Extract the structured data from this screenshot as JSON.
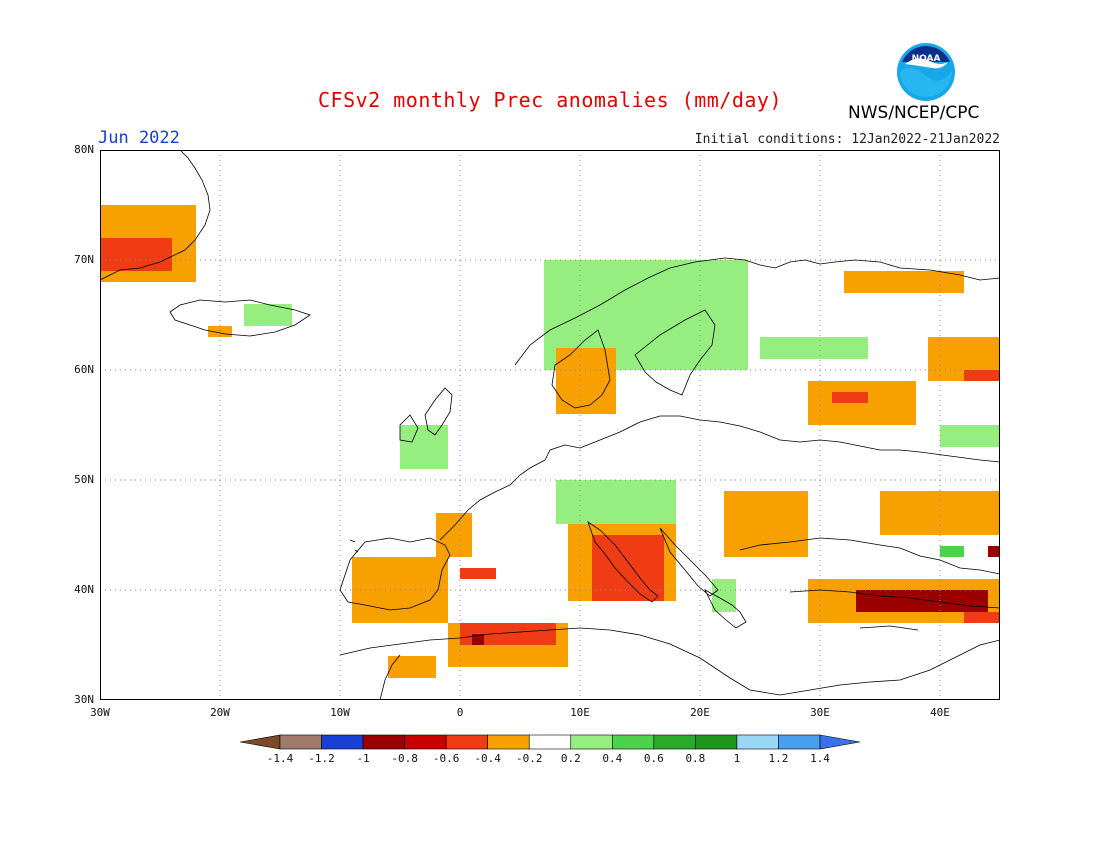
{
  "title": "CFSv2 monthly Prec anomalies (mm/day)",
  "valid_label": "Jun 2022",
  "initial_conditions": "Initial conditions: 12Jan2022-21Jan2022",
  "organization": "NWS/NCEP/CPC",
  "logo_text": "NOAA",
  "map": {
    "lon_range": [
      -30,
      45
    ],
    "lat_range": [
      30,
      80
    ],
    "lat_labels": [
      "80N",
      "70N",
      "60N",
      "50N",
      "40N",
      "30N"
    ],
    "lon_labels": [
      "30W",
      "20W",
      "10W",
      "0",
      "10E",
      "20E",
      "30E",
      "40E"
    ],
    "grid": "dotted"
  },
  "colorbar": {
    "labels": [
      "-1.4",
      "-1.2",
      "-1",
      "-0.8",
      "-0.6",
      "-0.4",
      "-0.2",
      "0.2",
      "0.4",
      "0.6",
      "0.8",
      "1",
      "1.2",
      "1.4"
    ],
    "colors": [
      "#7a4a2a",
      "#a07a6a",
      "#1a3fd6",
      "#9a0000",
      "#c80000",
      "#f03c14",
      "#f7a000",
      "#ffffff",
      "#96ee80",
      "#4cd24c",
      "#2aaa2a",
      "#1e961e",
      "#9ad6f5",
      "#4a9ef0",
      "#3a70e8"
    ]
  },
  "anomaly_regions": [
    {
      "category": "-0.4",
      "color": "#f7a000",
      "region": "Greenland east coast",
      "lon": [
        -30,
        -22
      ],
      "lat": [
        68,
        75
      ]
    },
    {
      "category": "-0.6",
      "color": "#f03c14",
      "region": "Greenland east coast",
      "lon": [
        -30,
        -24
      ],
      "lat": [
        69,
        72
      ]
    },
    {
      "category": "0.4",
      "color": "#96ee80",
      "region": "Iceland",
      "lon": [
        -18,
        -14
      ],
      "lat": [
        64,
        66
      ]
    },
    {
      "category": "-0.4",
      "color": "#f7a000",
      "region": "Iceland south",
      "lon": [
        -21,
        -19
      ],
      "lat": [
        63,
        64
      ]
    },
    {
      "category": "0.4",
      "color": "#96ee80",
      "region": "Scandinavian mountains",
      "lon": [
        7,
        24
      ],
      "lat": [
        60,
        70
      ]
    },
    {
      "category": "-0.4",
      "color": "#f7a000",
      "region": "Northwest Russia",
      "lon": [
        32,
        42
      ],
      "lat": [
        67,
        69
      ]
    },
    {
      "category": "0.4",
      "color": "#96ee80",
      "region": "Karelia",
      "lon": [
        25,
        34
      ],
      "lat": [
        61,
        63
      ]
    },
    {
      "category": "-0.4",
      "color": "#f7a000",
      "region": "Western Russia",
      "lon": [
        29,
        38
      ],
      "lat": [
        55,
        59
      ]
    },
    {
      "category": "-0.6",
      "color": "#f03c14",
      "region": "Western Russia",
      "lon": [
        31,
        34
      ],
      "lat": [
        57,
        58
      ]
    },
    {
      "category": "-0.4",
      "color": "#f7a000",
      "region": "Ural region",
      "lon": [
        39,
        45
      ],
      "lat": [
        59,
        63
      ]
    },
    {
      "category": "-0.6",
      "color": "#f03c14",
      "region": "Ural region",
      "lon": [
        42,
        45
      ],
      "lat": [
        59,
        60
      ]
    },
    {
      "category": "0.4",
      "color": "#96ee80",
      "region": "Middle Volga",
      "lon": [
        40,
        45
      ],
      "lat": [
        53,
        55
      ]
    },
    {
      "category": "-0.4",
      "color": "#f7a000",
      "region": "Southern Russia",
      "lon": [
        35,
        45
      ],
      "lat": [
        45,
        49
      ]
    },
    {
      "category": "0.6",
      "color": "#4cd24c",
      "region": "Caucasus",
      "lon": [
        40,
        42
      ],
      "lat": [
        43,
        44
      ]
    },
    {
      "category": "-0.8",
      "color": "#9a0000",
      "region": "Caucasus",
      "lon": [
        44,
        45
      ],
      "lat": [
        43,
        44
      ]
    },
    {
      "category": "-0.4",
      "color": "#f7a000",
      "region": "Anatolia",
      "lon": [
        29,
        45
      ],
      "lat": [
        37,
        41
      ]
    },
    {
      "category": "-0.8",
      "color": "#9a0000",
      "region": "Central Anatolia",
      "lon": [
        33,
        44
      ],
      "lat": [
        38,
        40
      ]
    },
    {
      "category": "-0.6",
      "color": "#f03c14",
      "region": "Eastern Turkey",
      "lon": [
        42,
        45
      ],
      "lat": [
        37,
        38
      ]
    },
    {
      "category": "-0.4",
      "color": "#f7a000",
      "region": "Iberian Peninsula",
      "lon": [
        -9,
        -1
      ],
      "lat": [
        37,
        43
      ]
    },
    {
      "category": "-0.4",
      "color": "#f7a000",
      "region": "Western France",
      "lon": [
        -2,
        1
      ],
      "lat": [
        43,
        47
      ]
    },
    {
      "category": "-0.6",
      "color": "#f03c14",
      "region": "Northeast Spain",
      "lon": [
        0,
        3
      ],
      "lat": [
        41,
        42
      ]
    },
    {
      "category": "-0.4",
      "color": "#f7a000",
      "region": "Algeria and Tunisia",
      "lon": [
        -1,
        9
      ],
      "lat": [
        33,
        37
      ]
    },
    {
      "category": "-0.6",
      "color": "#f03c14",
      "region": "Northern Algeria",
      "lon": [
        0,
        8
      ],
      "lat": [
        35,
        37
      ]
    },
    {
      "category": "-0.8",
      "color": "#9a0000",
      "region": "Northern Algeria",
      "lon": [
        1,
        2
      ],
      "lat": [
        35,
        36
      ]
    },
    {
      "category": "-0.4",
      "color": "#f7a000",
      "region": "Morocco",
      "lon": [
        -6,
        -2
      ],
      "lat": [
        32,
        34
      ]
    },
    {
      "category": "-0.4",
      "color": "#f7a000",
      "region": "Italy and Adriatic",
      "lon": [
        9,
        18
      ],
      "lat": [
        39,
        46
      ]
    },
    {
      "category": "-0.6",
      "color": "#f03c14",
      "region": "Italy and Adriatic",
      "lon": [
        11,
        17
      ],
      "lat": [
        39,
        45
      ]
    },
    {
      "category": "0.4",
      "color": "#96ee80",
      "region": "Greece",
      "lon": [
        21,
        23
      ],
      "lat": [
        38,
        41
      ]
    },
    {
      "category": "0.4",
      "color": "#96ee80",
      "region": "Central Europe",
      "lon": [
        8,
        18
      ],
      "lat": [
        46,
        50
      ]
    },
    {
      "category": "0.4",
      "color": "#96ee80",
      "region": "British Isles",
      "lon": [
        -5,
        -1
      ],
      "lat": [
        51,
        55
      ]
    },
    {
      "category": "-0.4",
      "color": "#f7a000",
      "region": "Southern Norway and Sweden",
      "lon": [
        8,
        13
      ],
      "lat": [
        56,
        62
      ]
    },
    {
      "category": "-0.4",
      "color": "#f7a000",
      "region": "Romania and Ukraine",
      "lon": [
        22,
        29
      ],
      "lat": [
        43,
        49
      ]
    }
  ]
}
